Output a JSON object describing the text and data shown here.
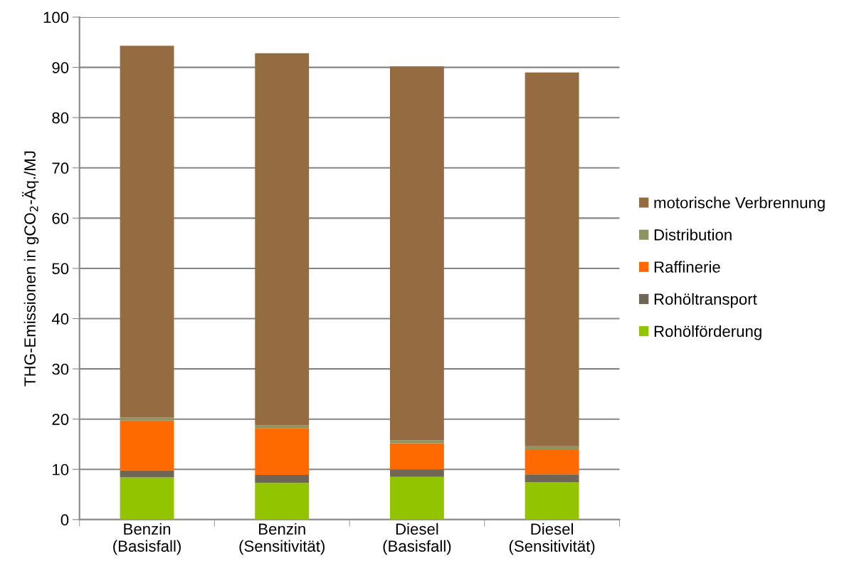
{
  "chart_data": {
    "type": "bar",
    "stacked": true,
    "ylabel": "THG-Emissionen in gCO$_{2}$-Äq./MJ",
    "categories": [
      "Benzin\n(Basisfall)",
      "Benzin\n(Sensitivität)",
      "Diesel\n(Basisfall)",
      "Diesel\n(Sensitivität)"
    ],
    "series": [
      {
        "name": "Rohölförderung",
        "color": "#92c500",
        "values": [
          8.4,
          7.3,
          8.5,
          7.4
        ]
      },
      {
        "name": "Rohöltransport",
        "color": "#6f6656",
        "values": [
          1.4,
          1.6,
          1.5,
          1.6
        ]
      },
      {
        "name": "Raffinerie",
        "color": "#ff6a00",
        "values": [
          9.9,
          9.3,
          5.2,
          5.0
        ]
      },
      {
        "name": "Distribution",
        "color": "#8f9360",
        "values": [
          0.6,
          0.6,
          0.6,
          0.6
        ]
      },
      {
        "name": "motorische Verbrennung",
        "color": "#956b42",
        "values": [
          74.0,
          74.0,
          74.4,
          74.4
        ]
      }
    ],
    "ylim": [
      0,
      100
    ],
    "yticks": [
      0,
      10,
      20,
      30,
      40,
      50,
      60,
      70,
      80,
      90,
      100
    ],
    "grid": "y",
    "legend": "right"
  }
}
